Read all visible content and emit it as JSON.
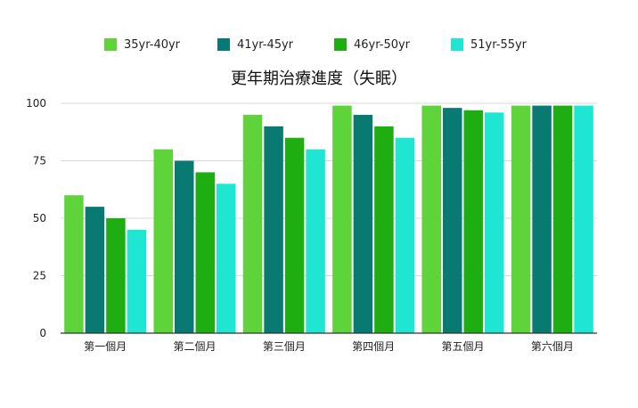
{
  "chart_data": {
    "type": "bar",
    "title": "更年期治療進度（失眠）",
    "xlabel": "",
    "ylabel": "",
    "ylim": [
      0,
      100
    ],
    "yticks": [
      0,
      25,
      50,
      75,
      100
    ],
    "grid": true,
    "legend_position": "top",
    "categories": [
      "第一個月",
      "第二個月",
      "第三個月",
      "第四個月",
      "第五個月",
      "第六個月"
    ],
    "series": [
      {
        "name": "35yr-40yr",
        "color": "#5fd43a",
        "values": [
          60,
          80,
          95,
          99,
          99,
          99
        ]
      },
      {
        "name": "41yr-45yr",
        "color": "#097a72",
        "values": [
          55,
          75,
          90,
          95,
          98,
          99
        ]
      },
      {
        "name": "46yr-50yr",
        "color": "#1fae12",
        "values": [
          50,
          70,
          85,
          90,
          97,
          99
        ]
      },
      {
        "name": "51yr-55yr",
        "color": "#1fe6d2",
        "values": [
          45,
          65,
          80,
          85,
          96,
          99
        ]
      }
    ]
  }
}
